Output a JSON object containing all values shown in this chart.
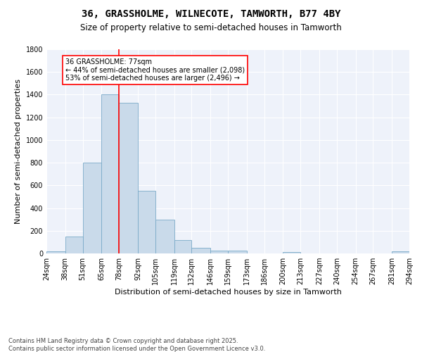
{
  "title": "36, GRASSHOLME, WILNECOTE, TAMWORTH, B77 4BY",
  "subtitle": "Size of property relative to semi-detached houses in Tamworth",
  "xlabel": "Distribution of semi-detached houses by size in Tamworth",
  "ylabel": "Number of semi-detached properties",
  "bar_color": "#c9daea",
  "bar_edge_color": "#7aaac8",
  "bg_color": "#eef2fa",
  "grid_color": "white",
  "vline_color": "red",
  "vline_x": 78,
  "annotation_text": "36 GRASSHOLME: 77sqm\n← 44% of semi-detached houses are smaller (2,098)\n53% of semi-detached houses are larger (2,496) →",
  "annotation_box_color": "white",
  "annotation_box_edge": "red",
  "bins": [
    24,
    38,
    51,
    65,
    78,
    92,
    105,
    119,
    132,
    146,
    159,
    173,
    186,
    200,
    213,
    227,
    240,
    254,
    267,
    281,
    294
  ],
  "counts": [
    20,
    150,
    800,
    1400,
    1330,
    550,
    300,
    120,
    50,
    25,
    25,
    0,
    0,
    15,
    0,
    0,
    0,
    0,
    0,
    20
  ],
  "ylim": [
    0,
    1800
  ],
  "yticks": [
    0,
    200,
    400,
    600,
    800,
    1000,
    1200,
    1400,
    1600,
    1800
  ],
  "footnote": "Contains HM Land Registry data © Crown copyright and database right 2025.\nContains public sector information licensed under the Open Government Licence v3.0.",
  "title_fontsize": 10,
  "subtitle_fontsize": 8.5,
  "tick_fontsize": 7,
  "ylabel_fontsize": 8,
  "xlabel_fontsize": 8,
  "footnote_fontsize": 6,
  "tick_labels": [
    "24sqm",
    "38sqm",
    "51sqm",
    "65sqm",
    "78sqm",
    "92sqm",
    "105sqm",
    "119sqm",
    "132sqm",
    "146sqm",
    "159sqm",
    "173sqm",
    "186sqm",
    "200sqm",
    "213sqm",
    "227sqm",
    "240sqm",
    "254sqm",
    "267sqm",
    "281sqm",
    "294sqm"
  ]
}
